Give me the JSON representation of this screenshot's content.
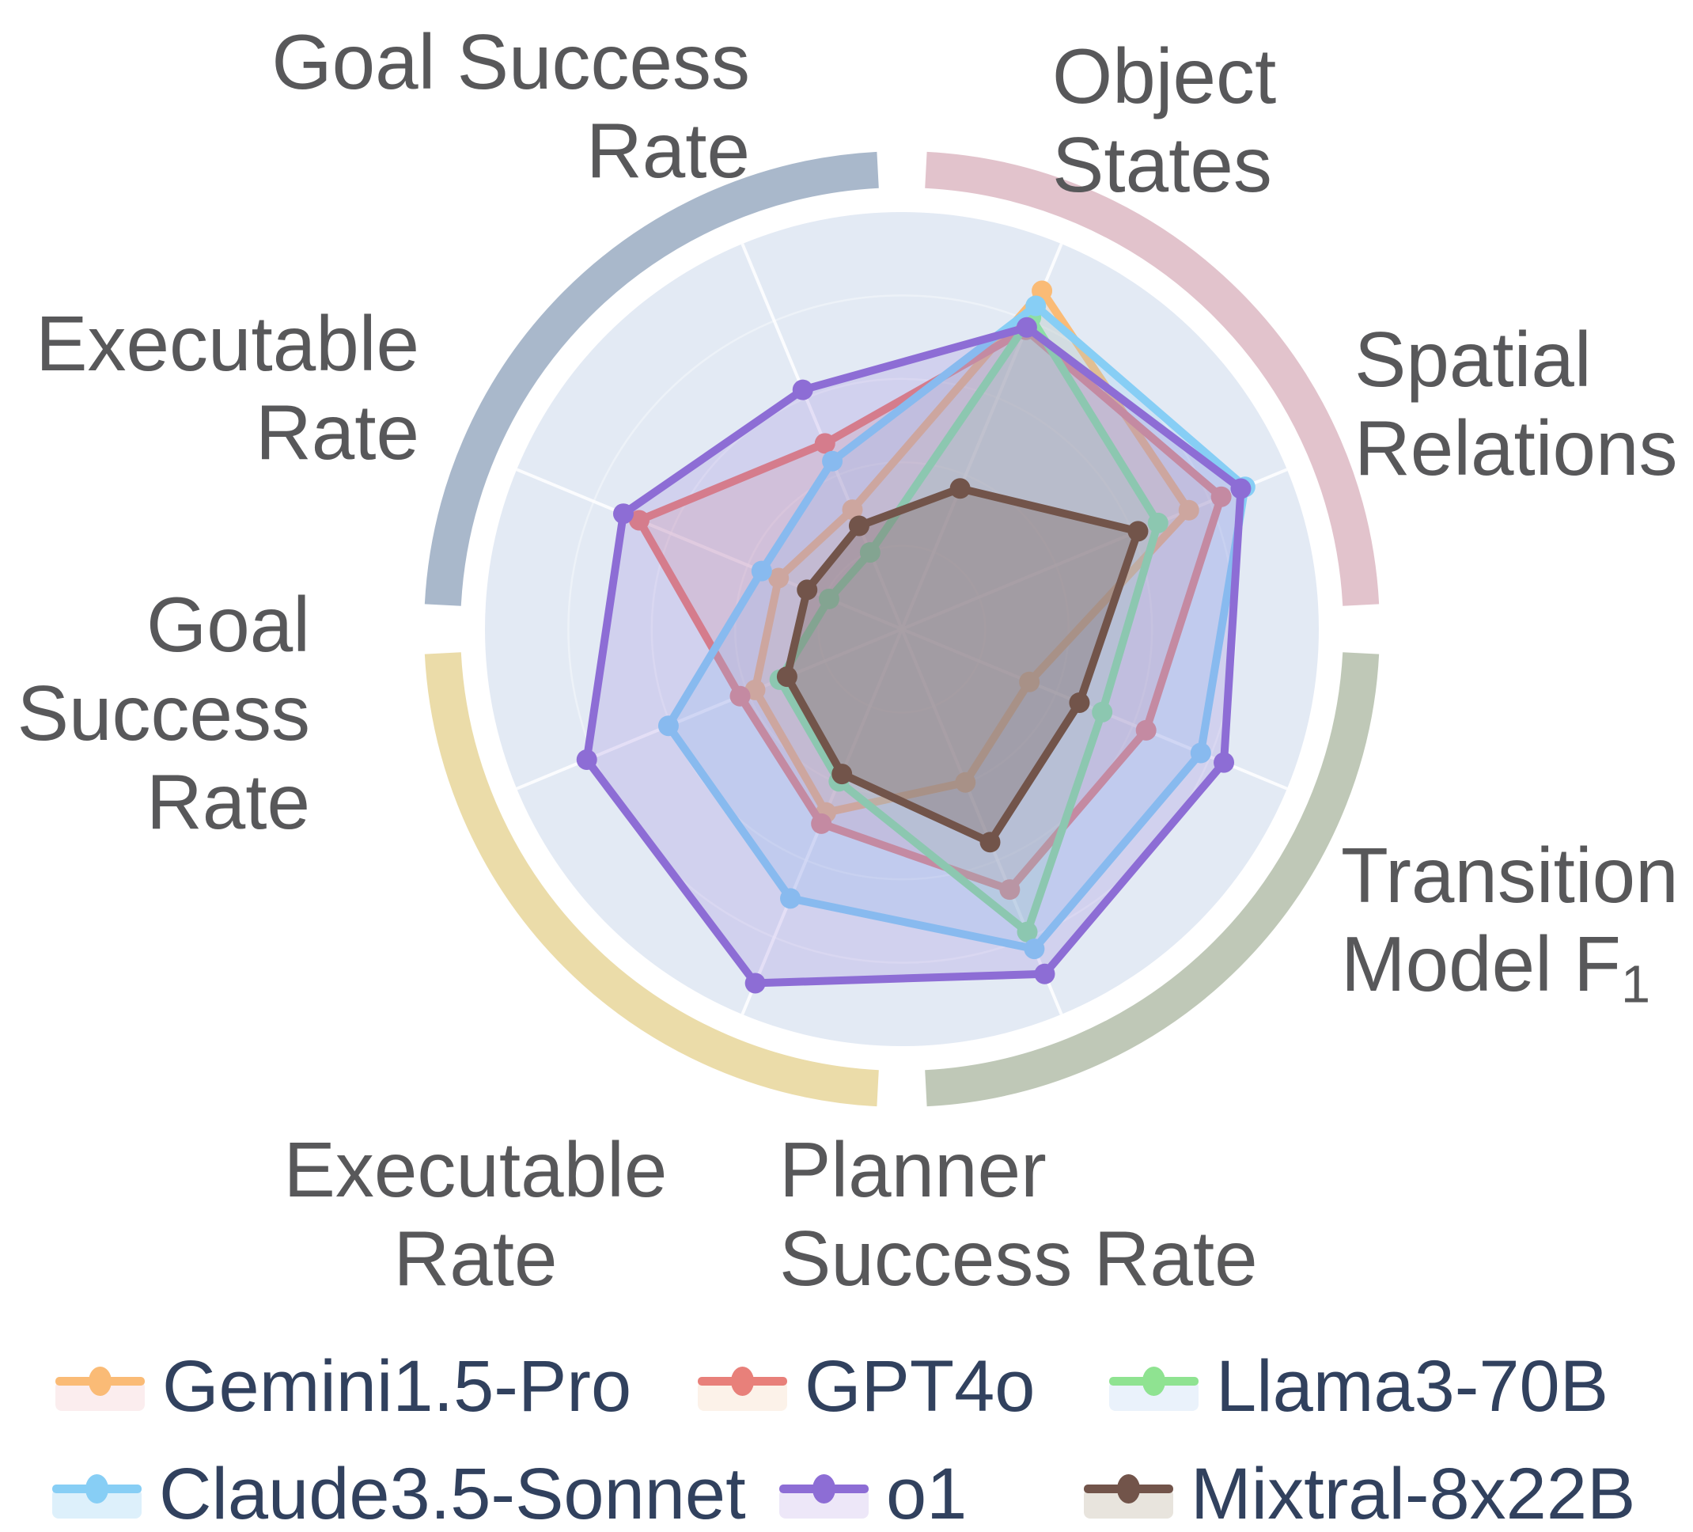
{
  "chart_data": {
    "type": "radar",
    "title": "",
    "scale_note": "no numeric tick labels shown; values are percent of axis maximum radius",
    "value_range": [
      0,
      100
    ],
    "axes": [
      {
        "id": "object-states",
        "angle_deg": 67.5,
        "label_lines": [
          "Object",
          "States"
        ]
      },
      {
        "id": "spatial-relations",
        "angle_deg": 22.5,
        "label_lines": [
          "Spatial",
          "Relations"
        ]
      },
      {
        "id": "transition-model-f1",
        "angle_deg": -22.5,
        "label_lines": [
          "Transition",
          "Model F"
        ],
        "sub": "1"
      },
      {
        "id": "planner-success-rate",
        "angle_deg": -67.5,
        "label_lines": [
          "Planner",
          "Success Rate"
        ]
      },
      {
        "id": "executable-rate-bottom",
        "angle_deg": -112.5,
        "label_lines": [
          "Executable",
          "Rate"
        ]
      },
      {
        "id": "goal-success-rate-left",
        "angle_deg": -157.5,
        "label_lines": [
          "Goal",
          "Success",
          "Rate"
        ]
      },
      {
        "id": "executable-rate-top",
        "angle_deg": 157.5,
        "label_lines": [
          "Executable",
          "Rate"
        ]
      },
      {
        "id": "goal-success-rate-top",
        "angle_deg": 112.5,
        "label_lines": [
          "Goal Success",
          "Rate"
        ]
      }
    ],
    "series": [
      {
        "name": "Gemini1.5-Pro",
        "color": "#FABB76",
        "fill": "rgba(250,187,118,0.20)",
        "values": [
          87.8,
          74.5,
          33.1,
          39.8,
          47.6,
          38.1,
          32.0,
          31.0
        ]
      },
      {
        "name": "GPT4o",
        "color": "#E8807A",
        "fill": "rgba(232,128,122,0.20)",
        "values": [
          77.7,
          82.9,
          63.4,
          67.6,
          50.5,
          42.0,
          68.2,
          48.2
        ]
      },
      {
        "name": "Llama3-70B",
        "color": "#8FE391",
        "fill": "rgba(143,227,145,0.20)",
        "values": [
          80.9,
          66.5,
          52.0,
          78.6,
          39.5,
          31.7,
          18.9,
          19.9
        ]
      },
      {
        "name": "Claude3.5-Sonnet",
        "color": "#87CEF5",
        "fill": "rgba(135,206,245,0.22)",
        "values": [
          83.9,
          89.1,
          77.6,
          83.0,
          69.9,
          60.6,
          36.4,
          43.6
        ]
      },
      {
        "name": "o1",
        "color": "#8D6DD5",
        "fill": "rgba(141,109,213,0.20)",
        "values": [
          78.3,
          88.0,
          83.6,
          89.5,
          91.9,
          81.8,
          72.3,
          62.1
        ]
      },
      {
        "name": "Mixtral-8x22B",
        "color": "#72544A",
        "fill": "rgba(114,84,74,0.30)",
        "values": [
          36.5,
          61.3,
          46.1,
          55.3,
          37.6,
          29.8,
          24.6,
          26.8
        ]
      }
    ],
    "grid": {
      "disc_color": "#E3EAF4",
      "ring_color": "rgba(255,255,255,0.38)",
      "spoke_color": "rgba(255,255,255,0.85)",
      "rings_pct": [
        20,
        40,
        60,
        80
      ]
    },
    "outer_arcs": [
      {
        "id": "arc-top-right-pink",
        "from_deg": 3,
        "to_deg": 87,
        "color": "#E2C3CC"
      },
      {
        "id": "arc-top-left-gray",
        "from_deg": 93,
        "to_deg": 177,
        "color": "#A9B8CB"
      },
      {
        "id": "arc-bottom-left-tan",
        "from_deg": 183,
        "to_deg": 267,
        "color": "#EBDCA9"
      },
      {
        "id": "arc-bottom-right-sage",
        "from_deg": 273,
        "to_deg": 357,
        "color": "#BFC8B7"
      }
    ],
    "layout": {
      "center_x": 1140,
      "center_y": 795,
      "radius": 527,
      "arc_radius": 581,
      "arc_width": 46,
      "line_width": 10,
      "dot_radius": 13
    }
  },
  "legend": {
    "items": [
      {
        "name": "Gemini1.5-Pro",
        "color": "#FABB76",
        "swatch": "#FBEDEE"
      },
      {
        "name": "GPT4o",
        "color": "#E8807A",
        "swatch": "#FCF2E9"
      },
      {
        "name": "Llama3-70B",
        "color": "#8FE391",
        "swatch": "#EAF2FB"
      },
      {
        "name": "Claude3.5-Sonnet",
        "color": "#87CEF5",
        "swatch": "#DDF0FB"
      },
      {
        "name": "o1",
        "color": "#8D6DD5",
        "swatch": "#EDE7F8"
      },
      {
        "name": "Mixtral-8x22B",
        "color": "#72544A",
        "swatch": "#E8E4DD"
      }
    ]
  },
  "text_colors": {
    "axis_label": "#58585A",
    "legend_label": "#31415E"
  }
}
